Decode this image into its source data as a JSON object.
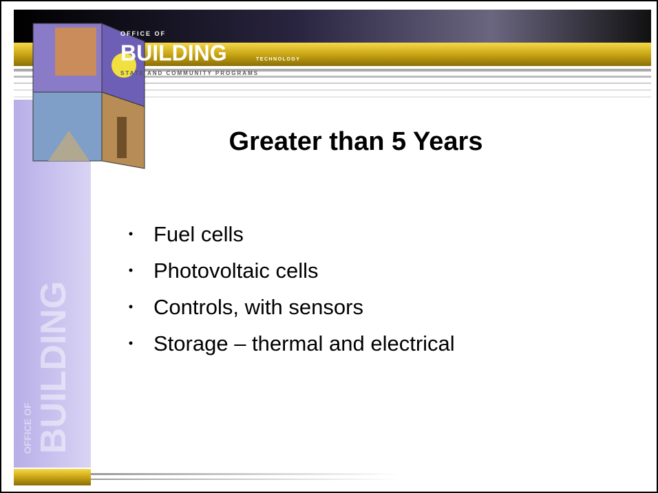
{
  "header": {
    "office": "OFFICE OF",
    "building": "BUILDING",
    "technology": "TECHNOLOGY",
    "programs": "STATE AND COMMUNITY PROGRAMS"
  },
  "slide": {
    "title": "Greater than 5 Years",
    "bullets": [
      "Fuel cells",
      "Photovoltaic cells",
      "Controls, with sensors",
      "Storage – thermal and electrical"
    ]
  }
}
